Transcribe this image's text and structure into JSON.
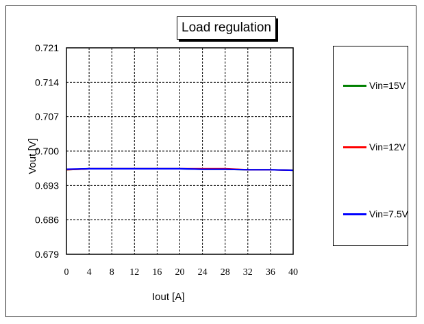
{
  "chart_data": {
    "type": "line",
    "title": "Load regulation",
    "xlabel": "Iout [A]",
    "ylabel": "Vout [V]",
    "xlim": [
      0,
      40
    ],
    "ylim": [
      0.679,
      0.721
    ],
    "x_ticks": [
      "0",
      "4",
      "8",
      "12",
      "16",
      "20",
      "24",
      "28",
      "32",
      "36",
      "40"
    ],
    "y_ticks": [
      "0.721",
      "0.714",
      "0.707",
      "0.700",
      "0.693",
      "0.686",
      "0.679"
    ],
    "grid": true,
    "legend_position": "right",
    "x": [
      0,
      4,
      8,
      12,
      16,
      20,
      24,
      28,
      32,
      36,
      40
    ],
    "series": [
      {
        "name": "Vin=15V",
        "color": "#008000",
        "values": [
          0.6962,
          0.6964,
          0.6964,
          0.6964,
          0.6964,
          0.6964,
          0.6963,
          0.6963,
          0.6962,
          0.6962,
          0.6961
        ]
      },
      {
        "name": "Vin=12V",
        "color": "#ff0000",
        "values": [
          0.6962,
          0.6964,
          0.6964,
          0.6964,
          0.6964,
          0.6964,
          0.6964,
          0.6964,
          0.6962,
          0.6962,
          0.6961
        ]
      },
      {
        "name": "Vin=7.5V",
        "color": "#0000ff",
        "values": [
          0.6963,
          0.6964,
          0.6964,
          0.6964,
          0.6964,
          0.6964,
          0.6963,
          0.6963,
          0.6962,
          0.6962,
          0.6961
        ]
      }
    ]
  }
}
